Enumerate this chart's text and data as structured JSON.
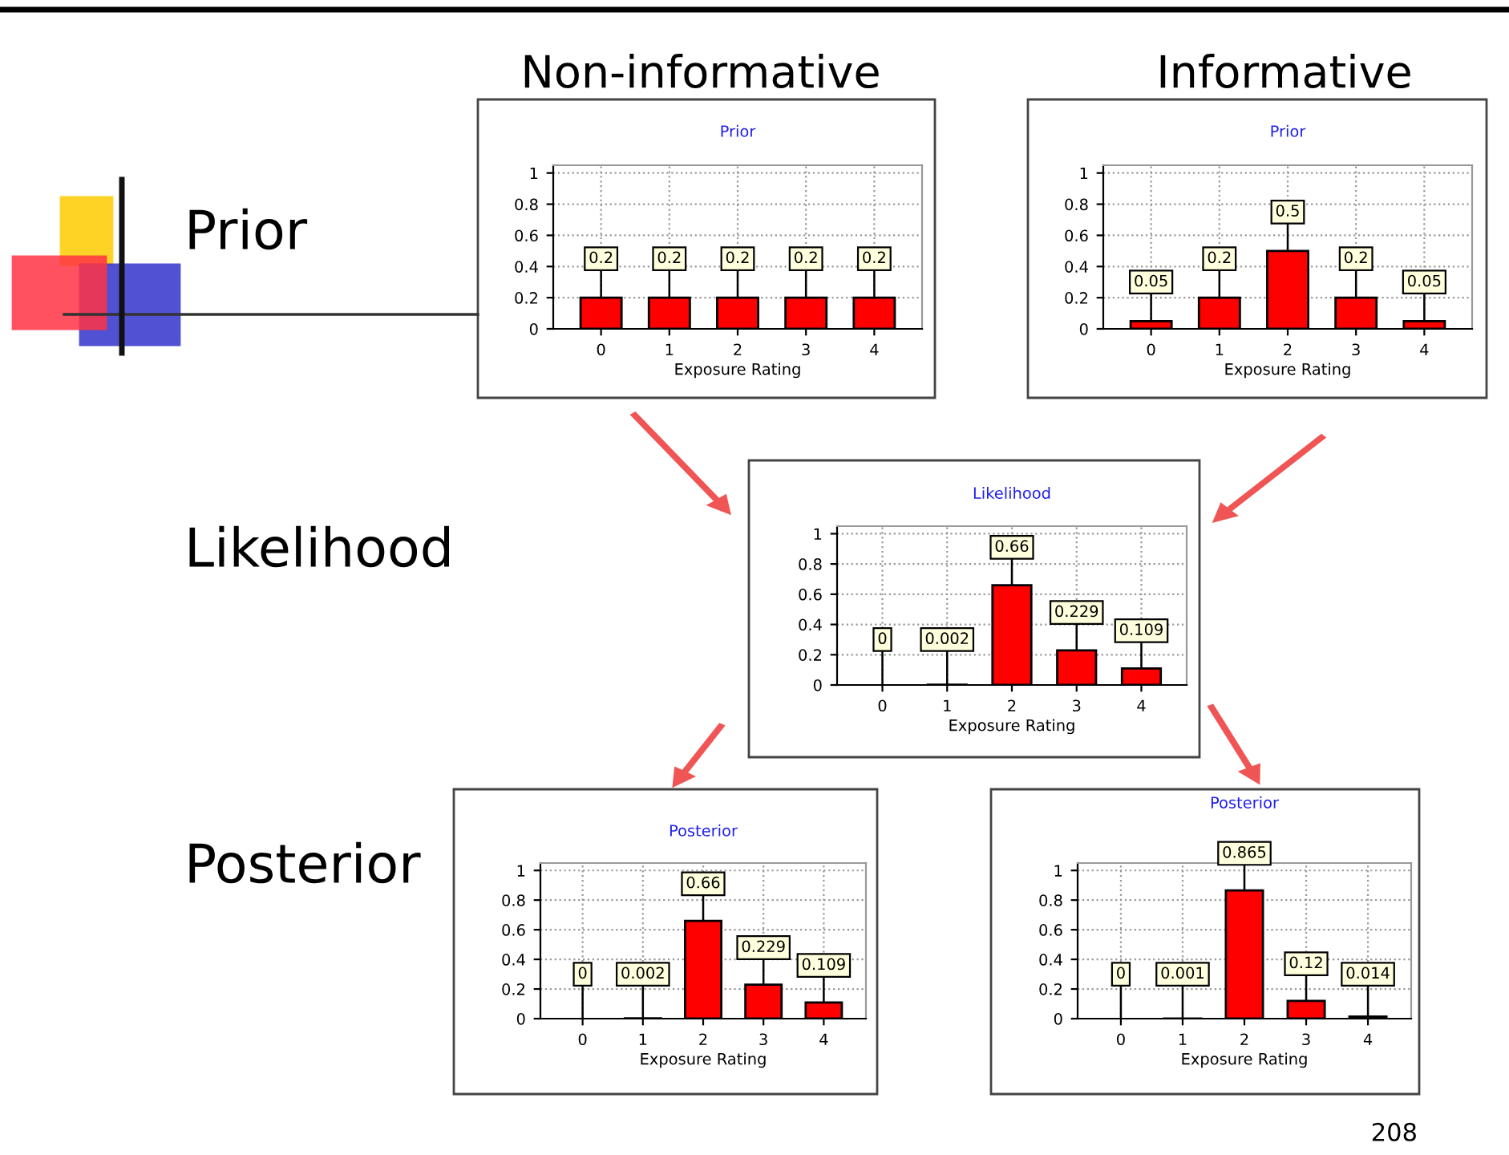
{
  "chart_data": [
    {
      "type": "bar",
      "title": "Prior",
      "xlabel": "Exposure Rating",
      "categories": [
        "0",
        "1",
        "2",
        "3",
        "4"
      ],
      "values": [
        0.2,
        0.2,
        0.2,
        0.2,
        0.2
      ],
      "color": "#ff0000",
      "ylim": [
        0,
        1.05
      ],
      "yticks": [
        0,
        0.2,
        0.4,
        0.6,
        0.8,
        1
      ],
      "grid": true,
      "data_labels": true
    },
    {
      "type": "bar",
      "title": "Prior",
      "xlabel": "Exposure Rating",
      "categories": [
        "0",
        "1",
        "2",
        "3",
        "4"
      ],
      "values": [
        0.05,
        0.2,
        0.5,
        0.2,
        0.05
      ],
      "color": "#ff0000",
      "ylim": [
        0,
        1.05
      ],
      "yticks": [
        0,
        0.2,
        0.4,
        0.6,
        0.8,
        1
      ],
      "grid": true,
      "data_labels": true
    },
    {
      "type": "bar",
      "title": "Likelihood",
      "xlabel": "Exposure Rating",
      "categories": [
        "0",
        "1",
        "2",
        "3",
        "4"
      ],
      "values": [
        0,
        0.002,
        0.66,
        0.229,
        0.109
      ],
      "color": "#ff0000",
      "ylim": [
        0,
        1.05
      ],
      "yticks": [
        0,
        0.2,
        0.4,
        0.6,
        0.8,
        1
      ],
      "grid": true,
      "data_labels": true
    },
    {
      "type": "bar",
      "title": "Posterior",
      "xlabel": "Exposure Rating",
      "categories": [
        "0",
        "1",
        "2",
        "3",
        "4"
      ],
      "values": [
        0,
        0.002,
        0.66,
        0.229,
        0.109
      ],
      "color": "#ff0000",
      "ylim": [
        0,
        1.05
      ],
      "yticks": [
        0,
        0.2,
        0.4,
        0.6,
        0.8,
        1
      ],
      "grid": true,
      "data_labels": true
    },
    {
      "type": "bar",
      "title": "Posterior",
      "xlabel": "Exposure Rating",
      "categories": [
        "0",
        "1",
        "2",
        "3",
        "4"
      ],
      "values": [
        0,
        0.001,
        0.865,
        0.12,
        0.014
      ],
      "color": "#ff0000",
      "ylim": [
        0,
        1.05
      ],
      "yticks": [
        0,
        0.2,
        0.4,
        0.6,
        0.8,
        1
      ],
      "grid": true,
      "data_labels": true
    },
    {
      "type": "other",
      "annotations": [
        "Non-informative",
        "Informative",
        "Prior",
        "Likelihood",
        "Posterior",
        "208"
      ]
    }
  ]
}
